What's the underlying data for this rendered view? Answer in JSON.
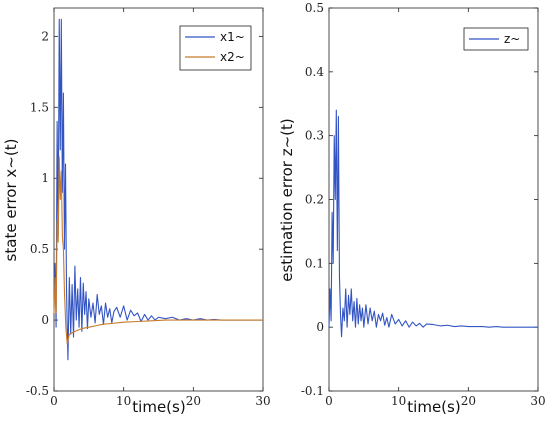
{
  "chart_data": [
    {
      "type": "line",
      "xlabel": "time(s)",
      "ylabel": "state error x~(t)",
      "xlim": [
        0,
        30
      ],
      "ylim": [
        -0.5,
        2.2
      ],
      "xticks": [
        0,
        10,
        20,
        30
      ],
      "yticks": [
        -0.5,
        0,
        0.5,
        1,
        1.5,
        2
      ],
      "ytick_labels": [
        "-0.5",
        "0",
        "0.5",
        "1",
        "1.5",
        "2"
      ],
      "legend_position": "top-right",
      "series": [
        {
          "name": "x1~",
          "color": "#3355c4",
          "x": [
            0,
            0.15,
            0.3,
            0.45,
            0.6,
            0.75,
            0.9,
            1.05,
            1.2,
            1.35,
            1.5,
            1.65,
            1.8,
            2,
            2.2,
            2.4,
            2.6,
            2.8,
            3,
            3.2,
            3.4,
            3.6,
            3.8,
            4,
            4.2,
            4.4,
            4.6,
            4.8,
            5,
            5.3,
            5.6,
            5.9,
            6.2,
            6.5,
            6.8,
            7.1,
            7.4,
            7.7,
            8,
            8.3,
            8.6,
            9,
            9.5,
            10,
            10.5,
            11,
            11.5,
            12,
            12.5,
            13,
            13.5,
            14,
            14.5,
            15,
            16,
            17,
            18,
            19,
            20,
            21,
            22,
            23,
            24,
            25,
            26,
            27,
            28,
            29,
            30
          ],
          "y": [
            0.1,
            0.4,
            -0.05,
            1.4,
            0.6,
            2.12,
            1.2,
            2.12,
            0.9,
            1.6,
            0.5,
            1.1,
            0.2,
            -0.28,
            0.3,
            -0.1,
            0.25,
            -0.12,
            0.38,
            0.0,
            0.22,
            -0.05,
            0.3,
            -0.08,
            0.26,
            0.04,
            0.2,
            -0.06,
            0.15,
            0.02,
            0.12,
            -0.02,
            0.18,
            0.04,
            0.1,
            -0.03,
            0.12,
            0.02,
            0.08,
            -0.02,
            0.06,
            0.09,
            0.02,
            0.1,
            0.0,
            0.07,
            0.03,
            0.05,
            -0.01,
            0.04,
            0.0,
            0.03,
            0.0,
            0.02,
            0.01,
            0.02,
            0.0,
            0.01,
            0.0,
            0.01,
            0.0,
            0.005,
            0.0,
            0.0,
            0.0,
            0.0,
            0.0,
            0.0,
            0.0
          ]
        },
        {
          "name": "x2~",
          "color": "#c87a2a",
          "x": [
            0,
            0.15,
            0.3,
            0.45,
            0.6,
            0.75,
            0.9,
            1.05,
            1.2,
            1.35,
            1.5,
            1.7,
            1.9,
            2.2,
            2.6,
            3,
            3.5,
            4,
            5,
            6,
            7,
            8,
            9,
            10,
            12,
            14,
            16,
            18,
            20,
            22,
            24,
            26,
            28,
            30
          ],
          "y": [
            0.05,
            0.3,
            0.05,
            0.7,
            0.55,
            1.15,
            0.85,
            1.05,
            0.6,
            0.5,
            0.2,
            -0.05,
            -0.17,
            -0.1,
            -0.09,
            -0.08,
            -0.07,
            -0.06,
            -0.05,
            -0.04,
            -0.03,
            -0.025,
            -0.02,
            -0.015,
            -0.01,
            -0.005,
            0.0,
            0.0,
            0.0,
            0.0,
            0.0,
            0.0,
            0.0,
            0.0
          ]
        }
      ]
    },
    {
      "type": "line",
      "xlabel": "time(s)",
      "ylabel": "estimation error z~(t)",
      "xlim": [
        0,
        30
      ],
      "ylim": [
        -0.1,
        0.5
      ],
      "xticks": [
        0,
        10,
        20,
        30
      ],
      "yticks": [
        -0.1,
        0,
        0.1,
        0.2,
        0.3,
        0.4,
        0.5
      ],
      "ytick_labels": [
        "-0.1",
        "0",
        "0.1",
        "0.2",
        "0.3",
        "0.4",
        "0.5"
      ],
      "legend_position": "top-right",
      "series": [
        {
          "name": "z~",
          "color": "#3355c4",
          "x": [
            0,
            0.15,
            0.3,
            0.45,
            0.6,
            0.75,
            0.9,
            1.05,
            1.2,
            1.35,
            1.5,
            1.65,
            1.8,
            2,
            2.2,
            2.4,
            2.6,
            2.8,
            3,
            3.2,
            3.4,
            3.6,
            3.8,
            4,
            4.2,
            4.4,
            4.6,
            4.8,
            5,
            5.3,
            5.6,
            5.9,
            6.2,
            6.5,
            6.8,
            7.1,
            7.4,
            7.7,
            8,
            8.3,
            8.6,
            9,
            9.5,
            10,
            10.5,
            11,
            11.5,
            12,
            12.5,
            13,
            13.5,
            14,
            15,
            16,
            17,
            18,
            19,
            20,
            21,
            22,
            23,
            24,
            25,
            26,
            27,
            28,
            29,
            30
          ],
          "y": [
            0.0,
            0.06,
            0.01,
            0.18,
            0.1,
            0.3,
            0.2,
            0.34,
            0.12,
            0.33,
            0.08,
            0.02,
            -0.015,
            0.03,
            0.01,
            0.06,
            0.0,
            0.05,
            0.02,
            0.06,
            0.01,
            0.04,
            0.0,
            0.045,
            0.005,
            0.035,
            0.01,
            0.03,
            0.0,
            0.035,
            0.005,
            0.03,
            0.01,
            0.025,
            0.0,
            0.02,
            0.01,
            0.022,
            0.003,
            0.015,
            0.0,
            0.02,
            0.005,
            0.012,
            0.002,
            0.01,
            0.0,
            0.008,
            0.002,
            0.006,
            0.0,
            0.005,
            0.004,
            0.002,
            0.003,
            0.001,
            0.002,
            0.001,
            0.001,
            0.001,
            0.0,
            0.001,
            0.0,
            0.0,
            0.0,
            0.0,
            0.0,
            0.0
          ]
        }
      ]
    }
  ]
}
